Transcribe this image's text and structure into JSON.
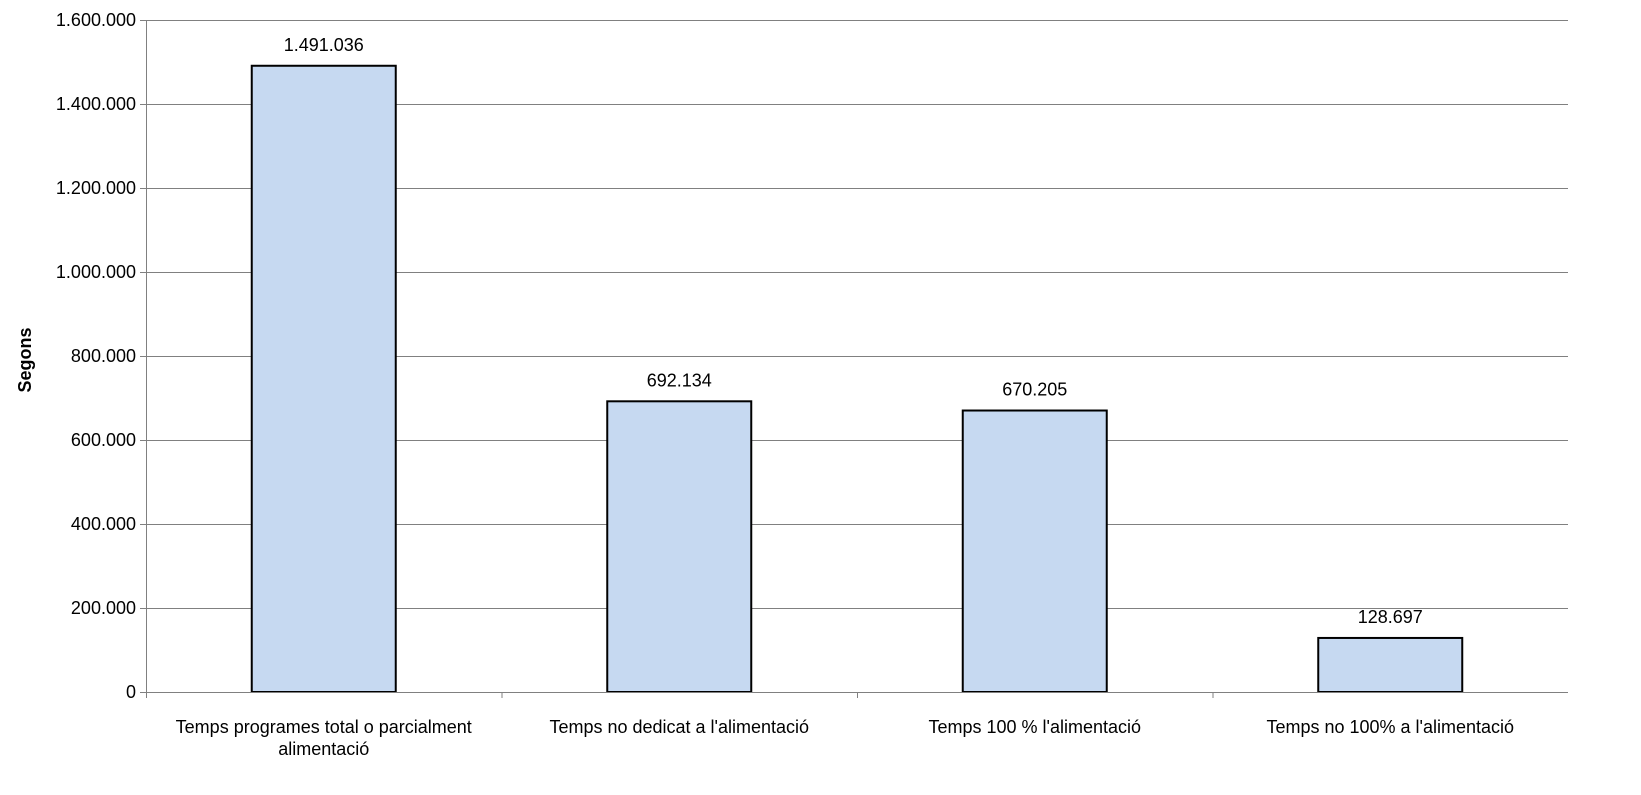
{
  "chart_data": {
    "type": "bar",
    "title": "",
    "xlabel": "",
    "ylabel": "Segons",
    "ylim": [
      0,
      1600000
    ],
    "y_ticks": [
      0,
      200000,
      400000,
      600000,
      800000,
      1000000,
      1200000,
      1400000,
      1600000
    ],
    "y_tick_labels": [
      "0",
      "200.000",
      "400.000",
      "600.000",
      "800.000",
      "1.000.000",
      "1.200.000",
      "1.400.000",
      "1.600.000"
    ],
    "grid": true,
    "legend": "none",
    "categories": [
      [
        "Temps programes total o parcialment",
        "alimentació"
      ],
      [
        "Temps no dedicat a l'alimentació"
      ],
      [
        "Temps 100 % l'alimentació"
      ],
      [
        "Temps no 100% a l'alimentació"
      ]
    ],
    "values": [
      1491036,
      692134,
      670205,
      128697
    ],
    "data_labels": [
      "1.491.036",
      "692.134",
      "670.205",
      "128.697"
    ],
    "colors": {
      "bar_fill": "#c6d9f1",
      "bar_stroke": "#000000",
      "grid": "#808080",
      "axis": "#808080"
    }
  }
}
